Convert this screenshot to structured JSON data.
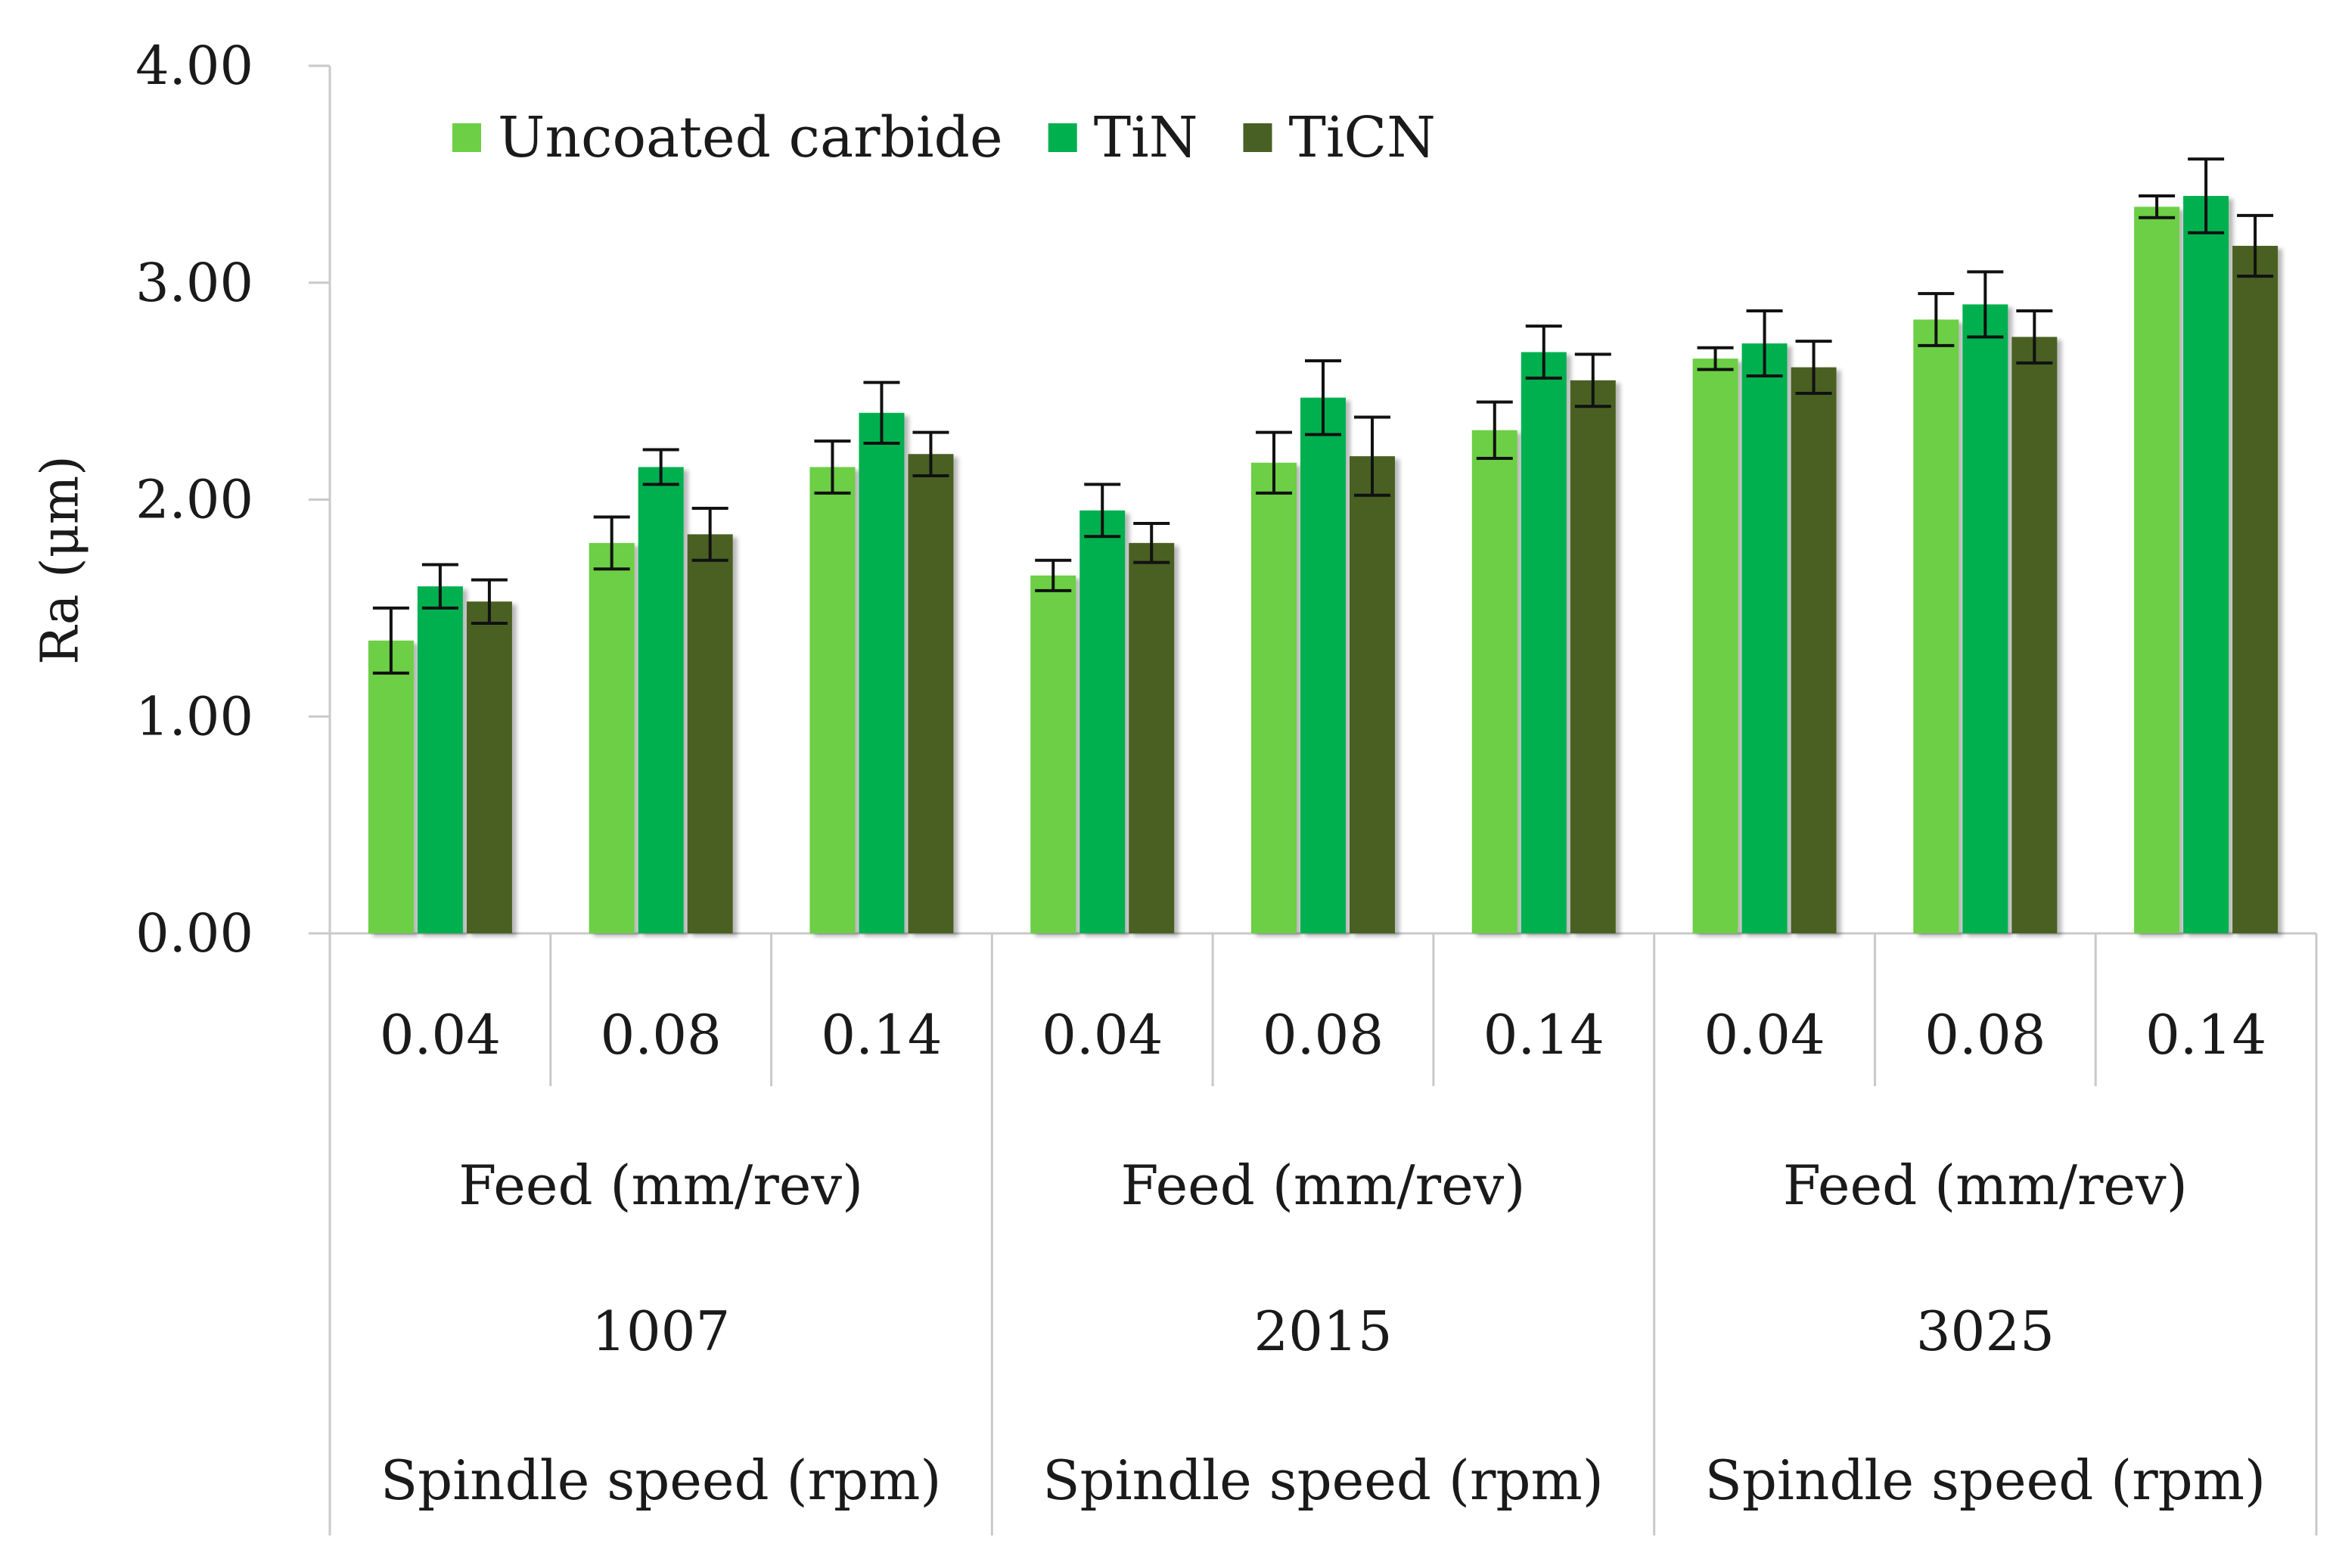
{
  "chart_data": {
    "type": "bar",
    "ylabel": "Ra (μm)",
    "ylim": [
      0,
      4
    ],
    "yticks": [
      0,
      1,
      2,
      3,
      4
    ],
    "ytick_labels": [
      "0.00",
      "1.00",
      "2.00",
      "3.00",
      "4.00"
    ],
    "grid": false,
    "legend_position": "top-left",
    "categories": [
      "0.04",
      "0.08",
      "0.14",
      "0.04",
      "0.08",
      "0.14",
      "0.04",
      "0.08",
      "0.14"
    ],
    "groups": [
      {
        "feed_label": "Feed (mm/rev)",
        "speed": "1007",
        "speed_label": "Spindle speed (rpm)"
      },
      {
        "feed_label": "Feed (mm/rev)",
        "speed": "2015",
        "speed_label": "Spindle speed (rpm)"
      },
      {
        "feed_label": "Feed (mm/rev)",
        "speed": "3025",
        "speed_label": "Spindle speed (rpm)"
      }
    ],
    "series": [
      {
        "name": "Uncoated carbide",
        "color": "#6ccf45",
        "values": [
          1.35,
          1.8,
          2.15,
          1.65,
          2.17,
          2.32,
          2.65,
          2.83,
          3.35
        ],
        "errors": [
          0.15,
          0.12,
          0.12,
          0.07,
          0.14,
          0.13,
          0.05,
          0.12,
          0.05
        ]
      },
      {
        "name": "TiN",
        "color": "#00b04f",
        "values": [
          1.6,
          2.15,
          2.4,
          1.95,
          2.47,
          2.68,
          2.72,
          2.9,
          3.4
        ],
        "errors": [
          0.1,
          0.08,
          0.14,
          0.12,
          0.17,
          0.12,
          0.15,
          0.15,
          0.17
        ]
      },
      {
        "name": "TiCN",
        "color": "#486024",
        "values": [
          1.53,
          1.84,
          2.21,
          1.8,
          2.2,
          2.55,
          2.61,
          2.75,
          3.17
        ],
        "errors": [
          0.1,
          0.12,
          0.1,
          0.09,
          0.18,
          0.12,
          0.12,
          0.12,
          0.14
        ]
      }
    ]
  }
}
